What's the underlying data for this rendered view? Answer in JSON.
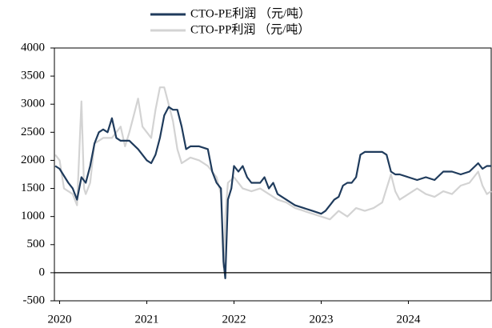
{
  "chart_data": {
    "type": "line",
    "ylim": [
      -500,
      4000
    ],
    "yticks": [
      -500,
      0,
      500,
      1000,
      1500,
      2000,
      2500,
      3000,
      3500,
      4000
    ],
    "xlim": [
      2019.94,
      2024.95
    ],
    "xticks": [
      2020,
      2021,
      2022,
      2023,
      2024
    ],
    "zero_line": true,
    "legend": "top",
    "series": [
      {
        "name": "CTO-PP利润 （元/吨）",
        "color": "#d3d3d3",
        "x": [
          2019.95,
          2020.0,
          2020.05,
          2020.1,
          2020.15,
          2020.2,
          2020.25,
          2020.28,
          2020.3,
          2020.35,
          2020.4,
          2020.5,
          2020.6,
          2020.7,
          2020.75,
          2020.8,
          2020.85,
          2020.9,
          2020.95,
          2021.0,
          2021.05,
          2021.1,
          2021.15,
          2021.2,
          2021.25,
          2021.3,
          2021.35,
          2021.4,
          2021.45,
          2021.5,
          2021.6,
          2021.7,
          2021.75,
          2021.8,
          2021.85,
          2021.88,
          2021.9,
          2021.93,
          2022.0,
          2022.1,
          2022.2,
          2022.3,
          2022.4,
          2022.5,
          2022.6,
          2022.7,
          2022.8,
          2022.9,
          2023.0,
          2023.1,
          2023.2,
          2023.3,
          2023.4,
          2023.5,
          2023.6,
          2023.7,
          2023.75,
          2023.8,
          2023.85,
          2023.9,
          2024.0,
          2024.1,
          2024.2,
          2024.3,
          2024.4,
          2024.5,
          2024.6,
          2024.7,
          2024.8,
          2024.85,
          2024.9,
          2024.95
        ],
        "values": [
          2100,
          2000,
          1500,
          1450,
          1400,
          1200,
          3050,
          1500,
          1400,
          1600,
          2300,
          2400,
          2400,
          2600,
          2250,
          2500,
          2800,
          3100,
          2600,
          2500,
          2400,
          2900,
          3300,
          3300,
          3000,
          2700,
          2200,
          1950,
          2000,
          2050,
          2000,
          1900,
          1800,
          1700,
          1400,
          100,
          1000,
          1600,
          1700,
          1500,
          1450,
          1500,
          1400,
          1300,
          1250,
          1150,
          1100,
          1050,
          1000,
          950,
          1100,
          1000,
          1150,
          1100,
          1150,
          1250,
          1500,
          1750,
          1450,
          1300,
          1400,
          1500,
          1400,
          1350,
          1450,
          1400,
          1550,
          1600,
          1800,
          1550,
          1400,
          1450
        ]
      },
      {
        "name": "CTO-PE利润 （元/吨）",
        "color": "#1f3b5c",
        "x": [
          2019.95,
          2020.0,
          2020.1,
          2020.15,
          2020.2,
          2020.25,
          2020.3,
          2020.35,
          2020.4,
          2020.45,
          2020.5,
          2020.55,
          2020.6,
          2020.65,
          2020.7,
          2020.8,
          2020.9,
          2021.0,
          2021.05,
          2021.1,
          2021.15,
          2021.2,
          2021.25,
          2021.3,
          2021.35,
          2021.4,
          2021.45,
          2021.5,
          2021.6,
          2021.7,
          2021.75,
          2021.8,
          2021.85,
          2021.88,
          2021.9,
          2021.93,
          2021.97,
          2022.0,
          2022.05,
          2022.1,
          2022.15,
          2022.2,
          2022.3,
          2022.35,
          2022.4,
          2022.45,
          2022.5,
          2022.6,
          2022.7,
          2022.8,
          2022.9,
          2023.0,
          2023.05,
          2023.1,
          2023.15,
          2023.2,
          2023.25,
          2023.3,
          2023.35,
          2023.4,
          2023.45,
          2023.5,
          2023.6,
          2023.7,
          2023.75,
          2023.8,
          2023.85,
          2023.9,
          2024.0,
          2024.1,
          2024.2,
          2024.3,
          2024.4,
          2024.5,
          2024.6,
          2024.7,
          2024.8,
          2024.85,
          2024.9,
          2024.95
        ],
        "values": [
          1900,
          1850,
          1600,
          1500,
          1300,
          1700,
          1600,
          1900,
          2300,
          2500,
          2550,
          2500,
          2750,
          2400,
          2350,
          2350,
          2200,
          2000,
          1950,
          2100,
          2400,
          2800,
          2950,
          2900,
          2900,
          2600,
          2200,
          2250,
          2250,
          2200,
          1800,
          1600,
          1500,
          200,
          -100,
          1300,
          1500,
          1900,
          1800,
          1900,
          1700,
          1600,
          1600,
          1700,
          1500,
          1600,
          1400,
          1300,
          1200,
          1150,
          1100,
          1050,
          1100,
          1200,
          1300,
          1350,
          1550,
          1600,
          1600,
          1700,
          2100,
          2150,
          2150,
          2150,
          2100,
          1800,
          1750,
          1750,
          1700,
          1650,
          1700,
          1650,
          1800,
          1800,
          1750,
          1800,
          1950,
          1850,
          1900,
          1900
        ]
      }
    ]
  }
}
